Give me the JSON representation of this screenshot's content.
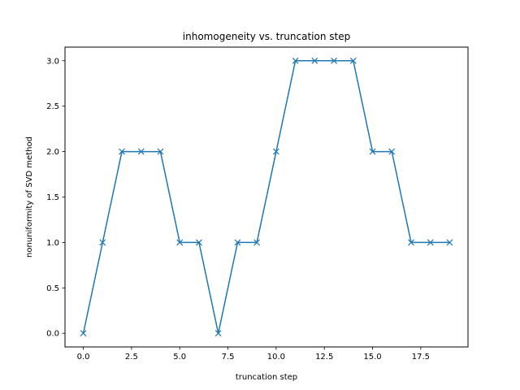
{
  "chart_data": {
    "type": "line",
    "title": "inhomogeneity vs. truncation step",
    "xlabel": "truncation step",
    "ylabel": "nonuniformity of SVD method",
    "x": [
      0,
      1,
      2,
      3,
      4,
      5,
      6,
      7,
      8,
      9,
      10,
      11,
      12,
      13,
      14,
      15,
      16,
      17,
      18,
      19
    ],
    "series": [
      {
        "values": [
          0,
          1,
          2,
          2,
          2,
          1,
          1,
          0,
          1,
          1,
          2,
          3,
          3,
          3,
          3,
          2,
          2,
          1,
          1,
          1
        ],
        "color": "#1f77b4",
        "marker": "x"
      }
    ],
    "xlim": [
      -0.95,
      19.95
    ],
    "ylim": [
      -0.15,
      3.15
    ],
    "xticks": [
      0.0,
      2.5,
      5.0,
      7.5,
      10.0,
      12.5,
      15.0,
      17.5
    ],
    "xtick_labels": [
      "0.0",
      "2.5",
      "5.0",
      "7.5",
      "10.0",
      "12.5",
      "15.0",
      "17.5"
    ],
    "yticks": [
      0.0,
      0.5,
      1.0,
      1.5,
      2.0,
      2.5,
      3.0
    ],
    "ytick_labels": [
      "0.0",
      "0.5",
      "1.0",
      "1.5",
      "2.0",
      "2.5",
      "3.0"
    ],
    "grid": false,
    "legend": false
  }
}
